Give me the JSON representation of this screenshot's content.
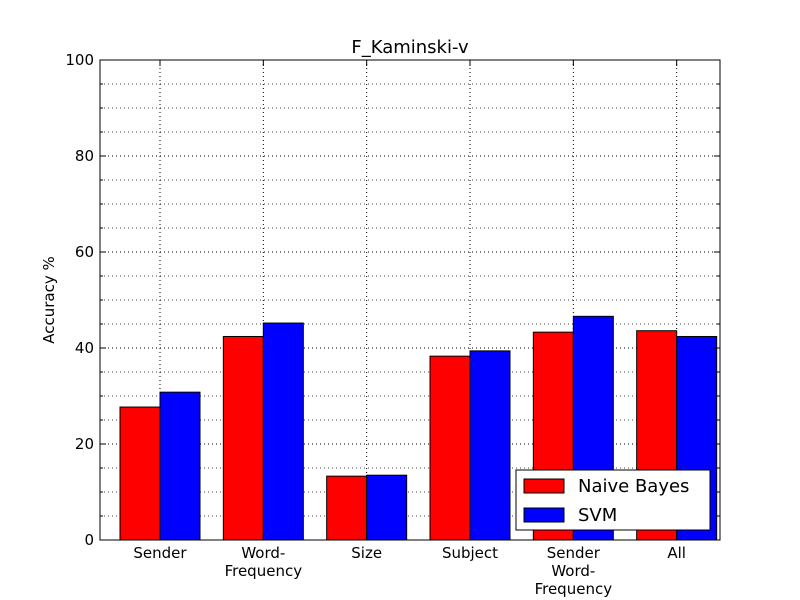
{
  "chart_data": {
    "type": "bar",
    "title": "F_Kaminski-v",
    "xlabel": "",
    "ylabel": "Accuracy %",
    "ylim": [
      0,
      100
    ],
    "yticks": [
      0,
      20,
      40,
      60,
      80,
      100
    ],
    "grid": true,
    "legend_position": "lower-right",
    "categories": [
      "Sender",
      "Word-Frequency",
      "Size",
      "Subject",
      "Sender Word-Frequency",
      "All"
    ],
    "category_label_lines": [
      [
        "Sender"
      ],
      [
        "Word-",
        "Frequency"
      ],
      [
        "Size"
      ],
      [
        "Subject"
      ],
      [
        "Sender",
        "Word-",
        "Frequency"
      ],
      [
        "All"
      ]
    ],
    "series": [
      {
        "name": "Naive Bayes",
        "color": "#ff0000",
        "values": [
          27.7,
          42.4,
          13.3,
          38.3,
          43.3,
          43.6
        ]
      },
      {
        "name": "SVM",
        "color": "#0000ff",
        "values": [
          30.8,
          45.2,
          13.5,
          39.4,
          46.6,
          42.4
        ]
      }
    ]
  }
}
